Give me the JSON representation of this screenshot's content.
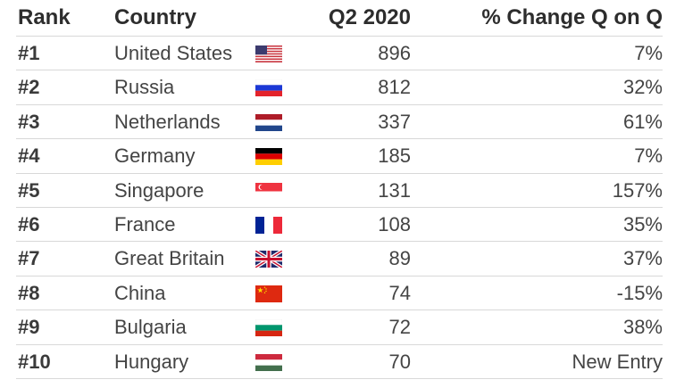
{
  "chart_data": {
    "type": "table",
    "columns": [
      "Rank",
      "Country",
      "Q2 2020",
      "% Change Q on Q"
    ],
    "rows": [
      {
        "rank": "#1",
        "country": "United States",
        "flag": "flag-us",
        "q2_2020": 896,
        "change": "7%"
      },
      {
        "rank": "#2",
        "country": "Russia",
        "flag": "flag-ru",
        "q2_2020": 812,
        "change": "32%"
      },
      {
        "rank": "#3",
        "country": "Netherlands",
        "flag": "flag-nl",
        "q2_2020": 337,
        "change": "61%"
      },
      {
        "rank": "#4",
        "country": "Germany",
        "flag": "flag-de",
        "q2_2020": 185,
        "change": "7%"
      },
      {
        "rank": "#5",
        "country": "Singapore",
        "flag": "flag-sg",
        "q2_2020": 131,
        "change": "157%"
      },
      {
        "rank": "#6",
        "country": "France",
        "flag": "flag-fr",
        "q2_2020": 108,
        "change": "35%"
      },
      {
        "rank": "#7",
        "country": "Great Britain",
        "flag": "flag-gb",
        "q2_2020": 89,
        "change": "37%"
      },
      {
        "rank": "#8",
        "country": "China",
        "flag": "flag-cn",
        "q2_2020": 74,
        "change": "-15%"
      },
      {
        "rank": "#9",
        "country": "Bulgaria",
        "flag": "flag-bg",
        "q2_2020": 72,
        "change": "38%"
      },
      {
        "rank": "#10",
        "country": "Hungary",
        "flag": "flag-hu",
        "q2_2020": 70,
        "change": "New Entry"
      }
    ]
  }
}
